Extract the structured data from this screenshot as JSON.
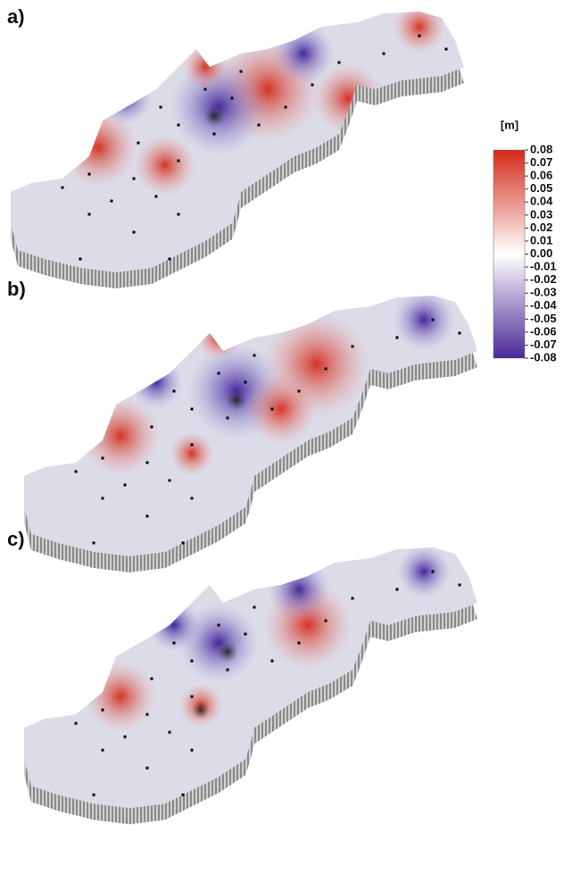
{
  "panels": [
    {
      "label": "a)"
    },
    {
      "label": "b)"
    },
    {
      "label": "c)"
    }
  ],
  "colorbar": {
    "unit": "[m]",
    "lim": [
      -0.08,
      0.08
    ],
    "colors": [
      "#4a2896",
      "#ffffff",
      "#d42a1a"
    ],
    "ticks": [
      0.08,
      0.07,
      0.06,
      0.05,
      0.04,
      0.03,
      0.02,
      0.01,
      {
        "value": 0,
        "label": "0.00"
      },
      -0.01,
      -0.02,
      -0.03,
      -0.04,
      -0.05,
      -0.06,
      -0.07,
      -0.08
    ]
  }
}
